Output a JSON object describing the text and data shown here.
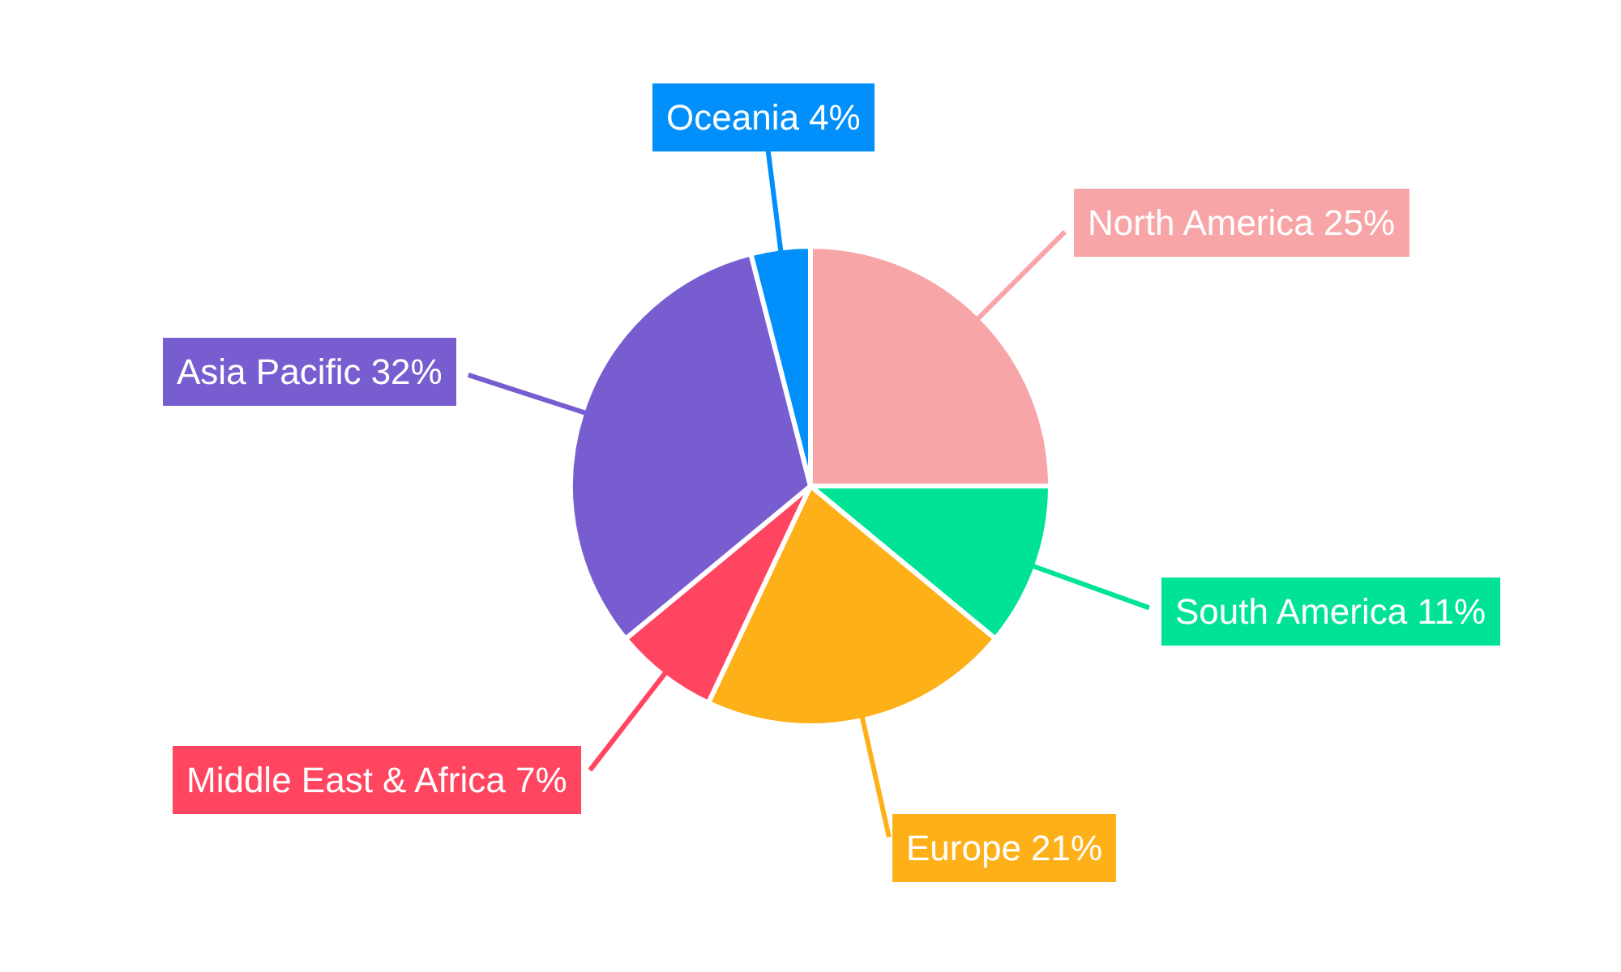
{
  "chart_data": {
    "type": "pie",
    "categories": [
      "North America",
      "South America",
      "Europe",
      "Middle East & Africa",
      "Asia Pacific",
      "Oceania"
    ],
    "values": [
      25,
      11,
      21,
      7,
      32,
      4
    ],
    "value_labels": [
      "25%",
      "11%",
      "21%",
      "7%",
      "32%",
      "4%"
    ],
    "colors": [
      "#f8a5a8",
      "#00e396",
      "#feb019",
      "#ff4560",
      "#775dd0",
      "#008ffb"
    ]
  }
}
